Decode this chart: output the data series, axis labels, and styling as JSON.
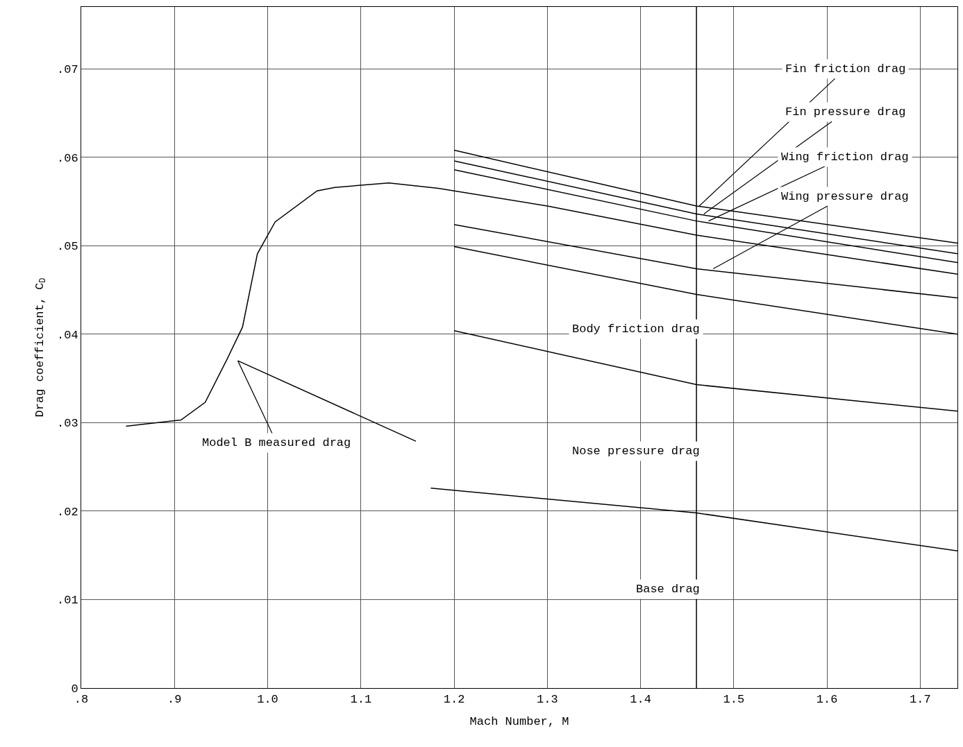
{
  "chart_data": {
    "type": "line",
    "xlabel": "Mach Number, M",
    "ylabel": "Drag coefficient, C$_{D}$",
    "xlim": [
      0.8,
      1.74
    ],
    "ylim": [
      0,
      0.077
    ],
    "xticks": [
      {
        "value": 0.8,
        "label": ".8"
      },
      {
        "value": 0.9,
        "label": ".9"
      },
      {
        "value": 1.0,
        "label": "1.0"
      },
      {
        "value": 1.1,
        "label": "1.1"
      },
      {
        "value": 1.2,
        "label": "1.2"
      },
      {
        "value": 1.3,
        "label": "1.3"
      },
      {
        "value": 1.4,
        "label": "1.4"
      },
      {
        "value": 1.5,
        "label": "1.5"
      },
      {
        "value": 1.6,
        "label": "1.6"
      },
      {
        "value": 1.7,
        "label": "1.7"
      }
    ],
    "yticks": [
      0,
      {
        "value": 0.01,
        "label": ".01"
      },
      {
        "value": 0.02,
        "label": ".02"
      },
      {
        "value": 0.03,
        "label": ".03"
      },
      {
        "value": 0.04,
        "label": ".04"
      },
      {
        "value": 0.05,
        "label": ".05"
      },
      {
        "value": 0.06,
        "label": ".06"
      },
      {
        "value": 0.07,
        "label": ".07"
      }
    ],
    "grid": true,
    "marker": "none",
    "line_style": "solid",
    "series": [
      {
        "color": "#000000",
        "x": [
          0.848,
          0.907,
          0.933,
          0.957,
          0.973,
          0.989,
          1.008,
          1.053,
          1.072,
          1.13,
          1.183,
          1.3,
          1.46,
          1.6,
          1.74
        ],
        "values": [
          0.0296,
          0.0303,
          0.0323,
          0.0373,
          0.0408,
          0.0491,
          0.0527,
          0.0562,
          0.0566,
          0.0571,
          0.0565,
          0.0545,
          0.0512,
          0.049,
          0.0468
        ]
      },
      {
        "color": "#000000",
        "x": [
          0.968,
          1.159
        ],
        "values": [
          0.037,
          0.0279
        ]
      },
      {
        "color": "#000000",
        "x": [
          1.2,
          1.46,
          1.74
        ],
        "values": [
          0.0608,
          0.0545,
          0.0503
        ]
      },
      {
        "color": "#000000",
        "x": [
          1.2,
          1.46,
          1.74
        ],
        "values": [
          0.0596,
          0.0536,
          0.0491
        ]
      },
      {
        "color": "#000000",
        "x": [
          1.2,
          1.46,
          1.74
        ],
        "values": [
          0.0586,
          0.0528,
          0.0481
        ]
      },
      {
        "color": "#000000",
        "x": [
          1.2,
          1.46,
          1.74
        ],
        "values": [
          0.0524,
          0.0474,
          0.0441
        ]
      },
      {
        "color": "#000000",
        "x": [
          1.2,
          1.46,
          1.74
        ],
        "values": [
          0.0499,
          0.0445,
          0.04
        ]
      },
      {
        "color": "#000000",
        "x": [
          1.2,
          1.46,
          1.74
        ],
        "values": [
          0.0404,
          0.0343,
          0.0313
        ]
      },
      {
        "color": "#000000",
        "x": [
          1.175,
          1.46,
          1.74
        ],
        "values": [
          0.0226,
          0.0198,
          0.0155
        ]
      }
    ],
    "ref_lines": [
      {
        "axis": "x",
        "value": 1.46,
        "color": "#000000"
      }
    ],
    "annotations": [
      {
        "text": "Fin friction drag",
        "x": 1.463,
        "y": 0.0545
      },
      {
        "text": "Fin pressure drag",
        "x": 1.468,
        "y": 0.0536
      },
      {
        "text": "Wing friction drag",
        "x": 1.473,
        "y": 0.0528
      },
      {
        "text": "Wing pressure drag",
        "x": 1.478,
        "y": 0.0474
      },
      "Body friction drag",
      "Nose pressure drag",
      "Base drag",
      {
        "text": "Model B measured drag",
        "x": 0.968,
        "y": 0.037
      }
    ]
  }
}
